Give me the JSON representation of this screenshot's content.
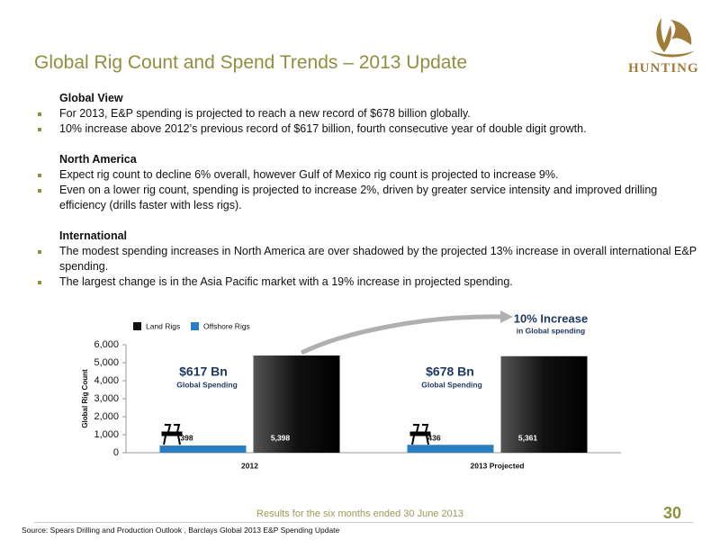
{
  "header": {
    "title": "Global Rig Count and Spend Trends – 2013 Update",
    "logo_text": "HUNTING"
  },
  "sections": [
    {
      "heading": "Global View",
      "bullets": [
        "For 2013, E&P spending is projected to reach a new record of $678 billion globally.",
        "10% increase above 2012’s previous record of $617 billion, fourth consecutive year of double digit growth."
      ]
    },
    {
      "heading": "North America",
      "bullets": [
        "Expect rig count to decline 6% overall, however Gulf of Mexico rig count is projected to increase 9%.",
        "Even on a lower rig count, spending is projected to increase 2%, driven by greater service intensity and improved drilling efficiency (drills faster with less rigs)."
      ]
    },
    {
      "heading": "International",
      "bullets": [
        "The modest spending increases in North America are over shadowed by the projected 13% increase in overall international E&P spending.",
        "The largest change is in the Asia Pacific market with a 19% increase in projected spending."
      ]
    }
  ],
  "chart_data": {
    "type": "bar",
    "y_label": "Global Rig Count",
    "categories": [
      "2012",
      "2013 Projected"
    ],
    "series": [
      {
        "name": "Land Rigs",
        "color": "#111111",
        "values": [
          5398,
          5361
        ],
        "value_labels": [
          "5,398",
          "5,361"
        ]
      },
      {
        "name": "Offshore Rigs",
        "color": "#2a7fc4",
        "values": [
          398,
          436
        ]
      }
    ],
    "ylim": [
      0,
      6000
    ],
    "yticks": [
      0,
      {
        "value": 1000,
        "label": "1,000"
      },
      {
        "value": 2000,
        "label": "2,000"
      },
      {
        "value": 3000,
        "label": "3,000"
      },
      {
        "value": 4000,
        "label": "4,000"
      },
      {
        "value": 5000,
        "label": "5,000"
      },
      {
        "value": 6000,
        "label": "6,000"
      }
    ],
    "grid": false,
    "annotations": [
      "$617 Bn",
      "Global Spending",
      "$678 Bn",
      "Global Spending",
      "10% Increase",
      "in Global spending"
    ]
  },
  "footer": {
    "caption": "Results for the six months ended 30 June 2013",
    "page_number": "30",
    "source": "Source:  Spears Drilling and Production Outlook , Barclays Global 2013 E&P Spending Update"
  }
}
